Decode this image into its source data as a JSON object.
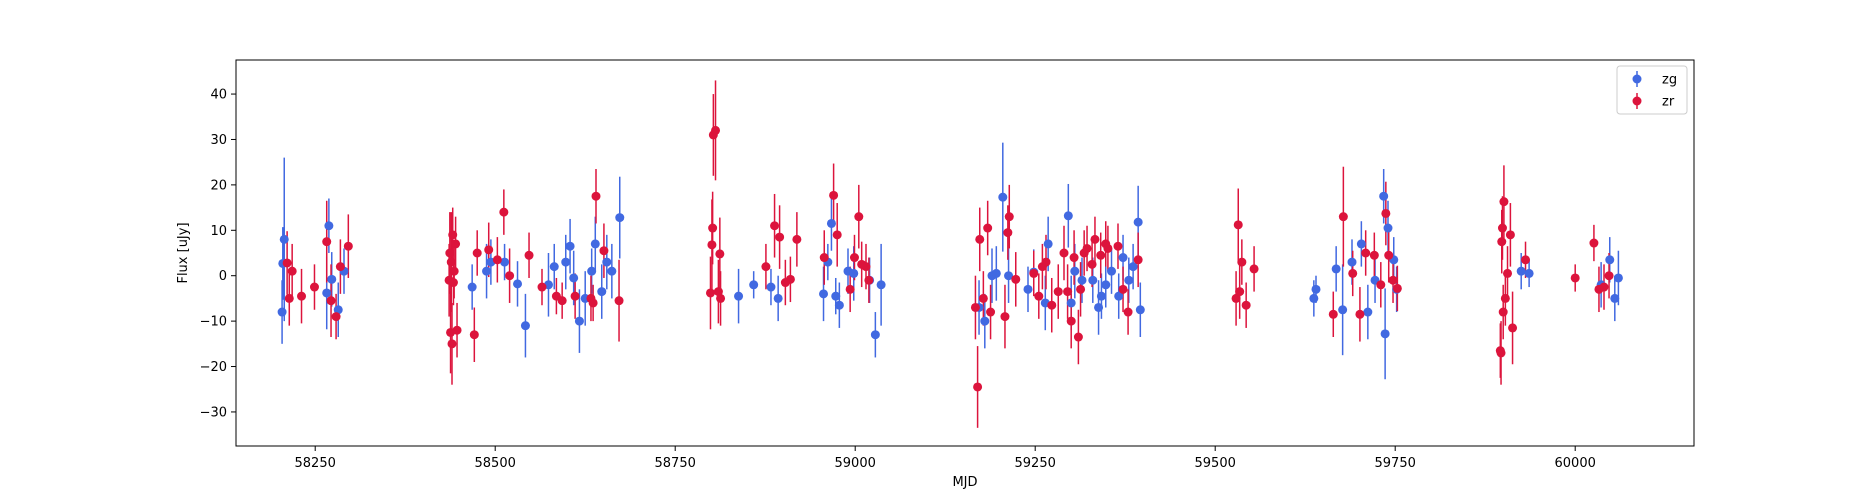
{
  "chart_data": {
    "type": "scatter",
    "title": "",
    "xlabel": "MJD",
    "ylabel": "Flux [uJy]",
    "xlim": [
      58140,
      60165
    ],
    "ylim": [
      -37.5,
      47.5
    ],
    "xticks": [
      58250,
      58500,
      58750,
      59000,
      59250,
      59500,
      59750,
      60000
    ],
    "xtick_labels": [
      "58250",
      "58500",
      "58750",
      "59000",
      "59250",
      "59500",
      "59750",
      "60000"
    ],
    "yticks": [
      -30,
      -20,
      -10,
      0,
      10,
      20,
      30,
      40
    ],
    "ytick_labels": [
      "−30",
      "−20",
      "−10",
      "0",
      "10",
      "20",
      "30",
      "40"
    ],
    "grid": false,
    "legend": "top-right",
    "series": [
      {
        "name": "zg",
        "color": "#4169e1",
        "points": [
          [
            58204,
            -8,
            7
          ],
          [
            58205,
            2.7,
            8
          ],
          [
            58207,
            8,
            18
          ],
          [
            58266,
            -3.8,
            8
          ],
          [
            58269,
            11,
            6
          ],
          [
            58273,
            -0.8,
            6
          ],
          [
            58282,
            -7.5,
            6
          ],
          [
            58290,
            1,
            5
          ],
          [
            58468,
            -2.5,
            5
          ],
          [
            58488,
            1,
            6
          ],
          [
            58494,
            3,
            5
          ],
          [
            58513,
            3,
            4
          ],
          [
            58531,
            -1.8,
            5
          ],
          [
            58542,
            -11,
            7
          ],
          [
            58574,
            -2,
            7
          ],
          [
            58582,
            2,
            5
          ],
          [
            58598,
            3,
            6
          ],
          [
            58604,
            6.5,
            6
          ],
          [
            58609,
            -0.5,
            6
          ],
          [
            58617,
            -10,
            7
          ],
          [
            58625,
            -5,
            6
          ],
          [
            58634,
            1,
            5
          ],
          [
            58639,
            7,
            6
          ],
          [
            58648,
            -3.5,
            6
          ],
          [
            58655,
            3,
            6
          ],
          [
            58662,
            1,
            6
          ],
          [
            58673,
            12.8,
            9
          ],
          [
            58838,
            -4.5,
            6
          ],
          [
            58859,
            -2,
            3
          ],
          [
            58883,
            -2.5,
            4
          ],
          [
            58893,
            -5,
            5
          ],
          [
            58956,
            -4,
            6
          ],
          [
            58962,
            3,
            4
          ],
          [
            58967,
            11.5,
            6
          ],
          [
            58973,
            -4.5,
            4
          ],
          [
            58978,
            -6.5,
            5
          ],
          [
            58990,
            1,
            5
          ],
          [
            58998,
            0.5,
            6
          ],
          [
            59020,
            -1,
            5
          ],
          [
            59028,
            -13,
            5
          ],
          [
            59036,
            -2,
            9
          ],
          [
            59172,
            -7,
            6
          ],
          [
            59180,
            -10,
            6
          ],
          [
            59190,
            0,
            6
          ],
          [
            59196,
            0.5,
            6
          ],
          [
            59205,
            17.3,
            12
          ],
          [
            59213,
            0,
            6
          ],
          [
            59240,
            -3,
            5
          ],
          [
            59248,
            0.8,
            5
          ],
          [
            59264,
            -6,
            6
          ],
          [
            59268,
            7,
            6
          ],
          [
            59296,
            13.2,
            7
          ],
          [
            59300,
            -6,
            6
          ],
          [
            59305,
            1,
            6
          ],
          [
            59315,
            -1,
            5
          ],
          [
            59330,
            -1,
            5
          ],
          [
            59338,
            -7,
            6
          ],
          [
            59342,
            -4.5,
            5
          ],
          [
            59348,
            -2,
            5
          ],
          [
            59356,
            1,
            5
          ],
          [
            59366,
            -4.5,
            5
          ],
          [
            59372,
            4,
            5
          ],
          [
            59380,
            -1,
            5
          ],
          [
            59386,
            2,
            5
          ],
          [
            59393,
            11.8,
            8
          ],
          [
            59396,
            -7.5,
            6
          ],
          [
            59637,
            -5,
            4
          ],
          [
            59640,
            -3,
            3
          ],
          [
            59668,
            1.5,
            5
          ],
          [
            59677,
            -7.5,
            10
          ],
          [
            59690,
            3,
            5
          ],
          [
            59703,
            7,
            5
          ],
          [
            59712,
            -8,
            6
          ],
          [
            59722,
            -1,
            5
          ],
          [
            59734,
            17.5,
            6
          ],
          [
            59736,
            -12.8,
            10
          ],
          [
            59740,
            10.5,
            6
          ],
          [
            59748,
            3.5,
            5
          ],
          [
            59752,
            -3,
            5
          ],
          [
            59925,
            1,
            4
          ],
          [
            59936,
            0.5,
            3
          ],
          [
            60036,
            -2,
            5
          ],
          [
            60048,
            3.5,
            5
          ],
          [
            60055,
            -5,
            5
          ],
          [
            60060,
            -0.5,
            6
          ]
        ]
      },
      {
        "name": "zr",
        "color": "#dc143c",
        "points": [
          [
            58211,
            2.8,
            7
          ],
          [
            58214,
            -5,
            6
          ],
          [
            58218,
            1,
            6
          ],
          [
            58231,
            -4.5,
            6
          ],
          [
            58249,
            -2.5,
            5
          ],
          [
            58266,
            7.5,
            9
          ],
          [
            58272,
            -5.5,
            8
          ],
          [
            58279,
            -9,
            5
          ],
          [
            58285,
            2,
            6
          ],
          [
            58296,
            6.5,
            7
          ],
          [
            58436,
            -1,
            8
          ],
          [
            58437,
            5,
            9
          ],
          [
            58438,
            -12.5,
            9
          ],
          [
            58439,
            3,
            11
          ],
          [
            58440,
            -15,
            9
          ],
          [
            58441,
            9,
            6
          ],
          [
            58442,
            -1.5,
            5
          ],
          [
            58443,
            1,
            6
          ],
          [
            58445,
            7,
            6
          ],
          [
            58447,
            -12,
            6
          ],
          [
            58471,
            -13,
            6
          ],
          [
            58475,
            5,
            5
          ],
          [
            58491,
            5.7,
            6
          ],
          [
            58503,
            3.5,
            5
          ],
          [
            58512,
            14,
            5
          ],
          [
            58520,
            0,
            6
          ],
          [
            58547,
            4.5,
            5
          ],
          [
            58565,
            -2.5,
            4
          ],
          [
            58585,
            -4.5,
            4
          ],
          [
            58593,
            -5.5,
            4
          ],
          [
            58611,
            -4.5,
            5
          ],
          [
            58633,
            -5,
            5
          ],
          [
            58636,
            -6,
            4
          ],
          [
            58640,
            17.5,
            6
          ],
          [
            58651,
            5.5,
            6
          ],
          [
            58672,
            -5.5,
            9
          ],
          [
            58799,
            -3.8,
            8
          ],
          [
            58801,
            6.8,
            10
          ],
          [
            58802,
            10.5,
            8
          ],
          [
            58803,
            31,
            9
          ],
          [
            58806,
            32,
            11
          ],
          [
            58810,
            -3.5,
            7
          ],
          [
            58812,
            4.8,
            8
          ],
          [
            58813,
            -5,
            6
          ],
          [
            58876,
            2,
            5
          ],
          [
            58888,
            11,
            7
          ],
          [
            58895,
            8.5,
            7
          ],
          [
            58903,
            -1.5,
            5
          ],
          [
            58910,
            -0.8,
            5
          ],
          [
            58919,
            8,
            6
          ],
          [
            58957,
            4,
            6
          ],
          [
            58970,
            17.7,
            7
          ],
          [
            58975,
            9,
            7
          ],
          [
            58993,
            -3,
            5
          ],
          [
            58999,
            4,
            5
          ],
          [
            59005,
            13,
            7
          ],
          [
            59009,
            2.5,
            5
          ],
          [
            59015,
            2,
            5
          ],
          [
            59019,
            -1,
            5
          ],
          [
            59167,
            -7,
            7
          ],
          [
            59170,
            -24.5,
            9
          ],
          [
            59173,
            8,
            7
          ],
          [
            59178,
            -5,
            6
          ],
          [
            59184,
            10.5,
            6
          ],
          [
            59188,
            -8,
            6
          ],
          [
            59208,
            -9,
            7
          ],
          [
            59212,
            9.5,
            6
          ],
          [
            59214,
            13,
            7
          ],
          [
            59223,
            -0.8,
            6
          ],
          [
            59248,
            0.5,
            5
          ],
          [
            59255,
            -4.5,
            5
          ],
          [
            59260,
            2,
            5
          ],
          [
            59265,
            3,
            6
          ],
          [
            59273,
            -6.5,
            6
          ],
          [
            59282,
            -3.5,
            6
          ],
          [
            59290,
            5,
            6
          ],
          [
            59295,
            -3.5,
            6
          ],
          [
            59300,
            -10,
            6
          ],
          [
            59304,
            4,
            6
          ],
          [
            59310,
            -13.5,
            6
          ],
          [
            59313,
            -3,
            6
          ],
          [
            59318,
            5,
            5
          ],
          [
            59322,
            6,
            5
          ],
          [
            59329,
            2.5,
            5
          ],
          [
            59333,
            8,
            5
          ],
          [
            59341,
            4.5,
            5
          ],
          [
            59348,
            7,
            5
          ],
          [
            59351,
            6,
            5
          ],
          [
            59365,
            6.5,
            5
          ],
          [
            59372,
            -3,
            5
          ],
          [
            59379,
            -8,
            5
          ],
          [
            59393,
            3.5,
            6
          ],
          [
            59529,
            -5,
            6
          ],
          [
            59532,
            11.2,
            8
          ],
          [
            59534,
            -3.5,
            6
          ],
          [
            59537,
            3,
            5
          ],
          [
            59543,
            -6.5,
            5
          ],
          [
            59554,
            1.5,
            5
          ],
          [
            59664,
            -8.5,
            5
          ],
          [
            59678,
            13,
            11
          ],
          [
            59691,
            0.5,
            5
          ],
          [
            59701,
            -8.5,
            6
          ],
          [
            59709,
            5,
            5
          ],
          [
            59721,
            4.5,
            5
          ],
          [
            59730,
            -2,
            5
          ],
          [
            59737,
            13.7,
            7
          ],
          [
            59741,
            4.5,
            6
          ],
          [
            59747,
            -1,
            5
          ],
          [
            59753,
            -2.8,
            5
          ],
          [
            59896,
            -16.5,
            6
          ],
          [
            59897,
            -17,
            7
          ],
          [
            59898,
            7.5,
            7
          ],
          [
            59899,
            10.5,
            7
          ],
          [
            59900,
            -8,
            6
          ],
          [
            59901,
            16.3,
            8
          ],
          [
            59903,
            -5,
            6
          ],
          [
            59906,
            0.5,
            6
          ],
          [
            59910,
            9,
            7
          ],
          [
            59913,
            -11.5,
            8
          ],
          [
            59931,
            3.5,
            4
          ],
          [
            60000,
            -0.5,
            3
          ],
          [
            60026,
            7.2,
            4
          ],
          [
            60033,
            -3,
            5
          ],
          [
            60040,
            -2.5,
            5
          ],
          [
            60047,
            0,
            5
          ]
        ]
      }
    ]
  }
}
